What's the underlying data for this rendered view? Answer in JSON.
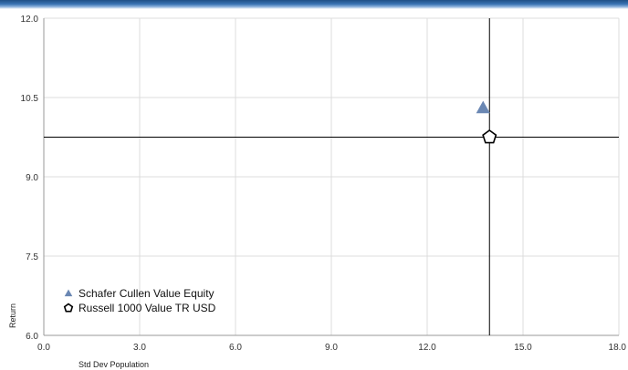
{
  "chart_data": {
    "type": "scatter",
    "xlabel": "Std Dev Population",
    "ylabel": "Return",
    "xlim": [
      0.0,
      18.0
    ],
    "ylim": [
      6.0,
      12.0
    ],
    "x_ticks": [
      "0.0",
      "3.0",
      "6.0",
      "9.0",
      "12.0",
      "15.0",
      "18.0"
    ],
    "y_ticks": [
      "6.0",
      "7.5",
      "9.0",
      "10.5",
      "12.0"
    ],
    "grid": true,
    "legend_position": "bottom-left",
    "crosshair": {
      "x": 13.95,
      "y": 9.75
    },
    "series": [
      {
        "name": "Schafer Cullen Value Equity",
        "marker": "triangle",
        "color": "#6a87b3",
        "x": 13.75,
        "y": 10.3
      },
      {
        "name": "Russell 1000 Value TR USD",
        "marker": "pentagon",
        "color": "#ffffff",
        "stroke": "#000000",
        "x": 13.95,
        "y": 9.75
      }
    ]
  }
}
